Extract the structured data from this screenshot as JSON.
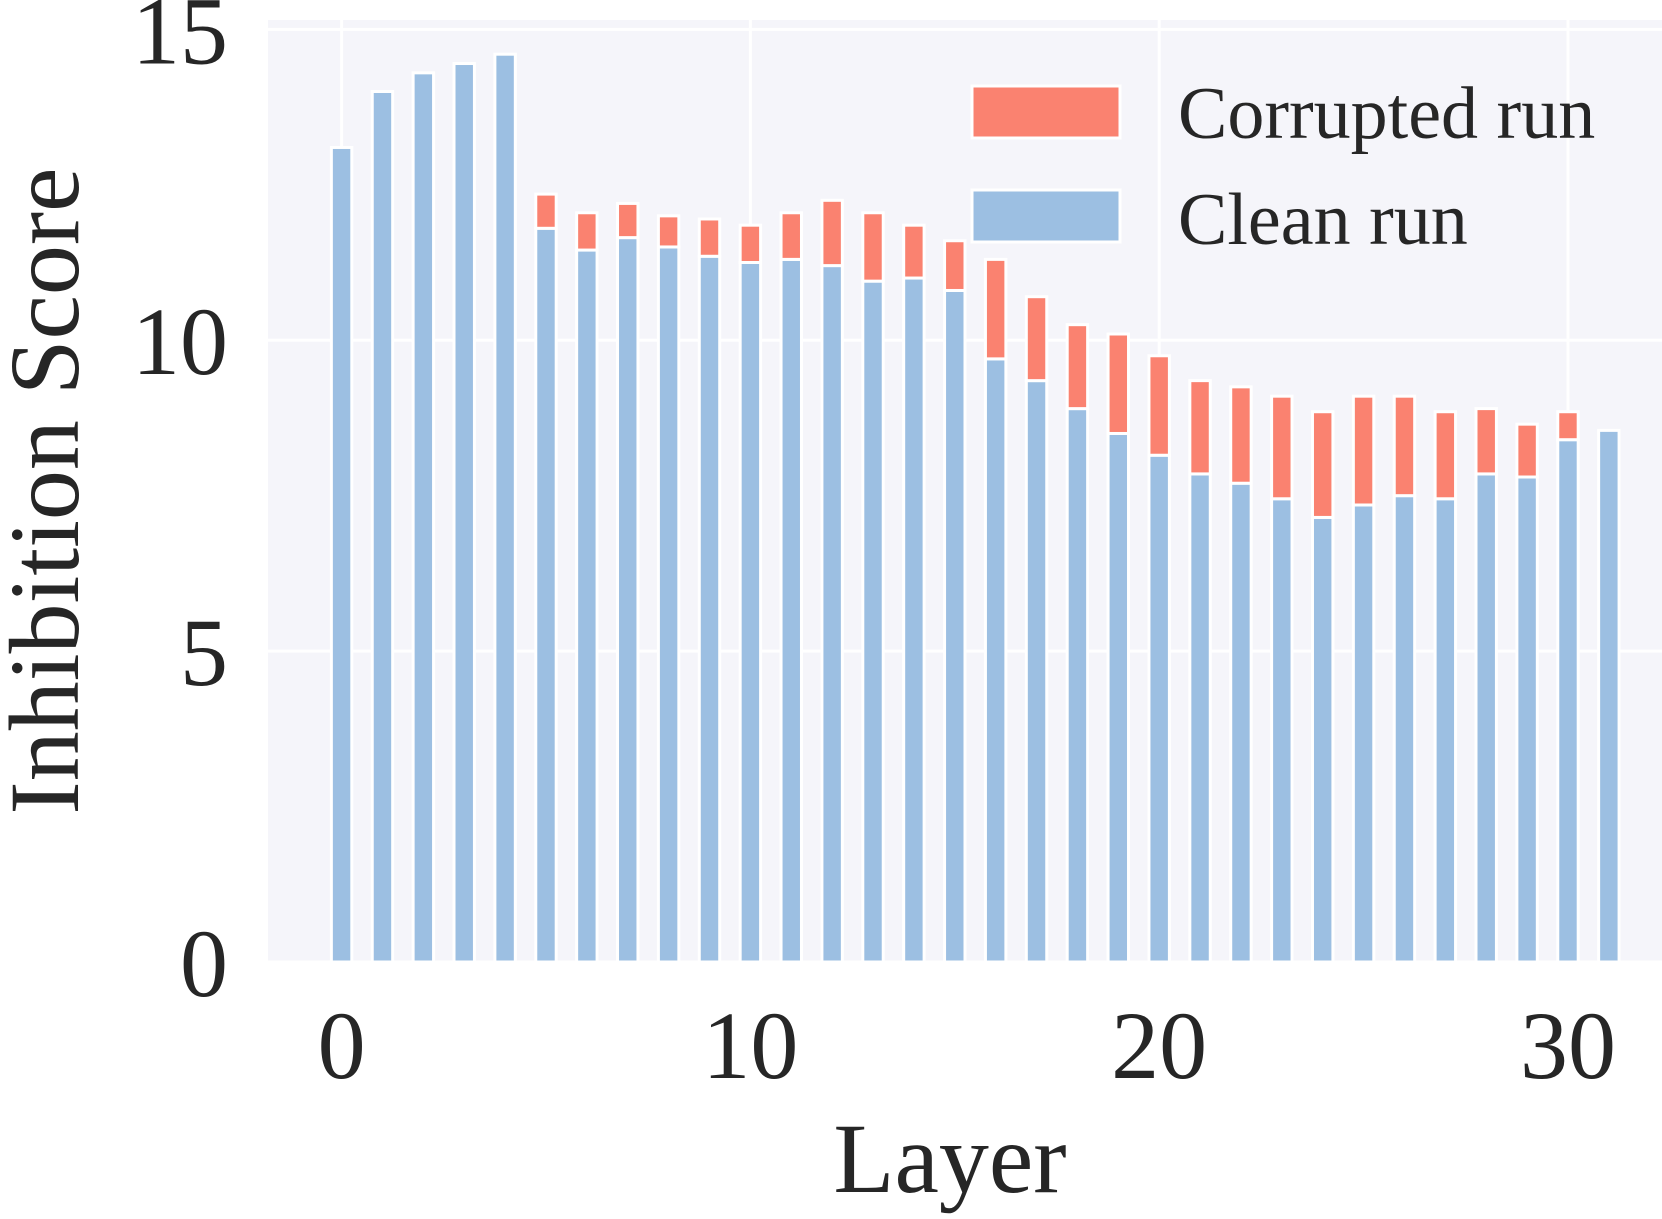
{
  "chart_data": {
    "type": "bar",
    "stacked": true,
    "xlabel": "Layer",
    "ylabel": "Inhibition Score",
    "xlim": [
      -1.8,
      32.3
    ],
    "ylim": [
      0,
      15.15
    ],
    "xticks": [
      0,
      10,
      20,
      30
    ],
    "yticks": [
      0,
      5,
      10,
      15
    ],
    "grid": true,
    "legend": {
      "placement": "top-right"
    },
    "colors": {
      "background": "#f5f5fa",
      "grid": "#ffffff",
      "clean": "#9cbfe2",
      "corrupted": "#fa8270",
      "bar_edge": "#ffffff",
      "text": "#262626"
    },
    "x": [
      0,
      1,
      2,
      3,
      4,
      5,
      6,
      7,
      8,
      9,
      10,
      11,
      12,
      13,
      14,
      15,
      16,
      17,
      18,
      19,
      20,
      21,
      22,
      23,
      24,
      25,
      26,
      27,
      28,
      29,
      30,
      31
    ],
    "series": [
      {
        "name": "Clean run",
        "values": [
          13.1,
          14.0,
          14.3,
          14.45,
          14.6,
          11.8,
          11.45,
          11.65,
          11.5,
          11.35,
          11.25,
          11.3,
          11.2,
          10.95,
          11.0,
          10.8,
          9.7,
          9.35,
          8.9,
          8.5,
          8.15,
          7.85,
          7.7,
          7.45,
          7.15,
          7.35,
          7.5,
          7.45,
          7.85,
          7.8,
          8.4,
          8.55
        ]
      },
      {
        "name": "Corrupted run",
        "values": [
          0,
          0,
          0,
          0,
          0,
          0.55,
          0.6,
          0.55,
          0.5,
          0.6,
          0.6,
          0.75,
          1.05,
          1.1,
          0.85,
          0.8,
          1.6,
          1.35,
          1.35,
          1.6,
          1.6,
          1.5,
          1.55,
          1.65,
          1.7,
          1.75,
          1.6,
          1.4,
          1.05,
          0.85,
          0.45,
          0
        ]
      }
    ]
  }
}
